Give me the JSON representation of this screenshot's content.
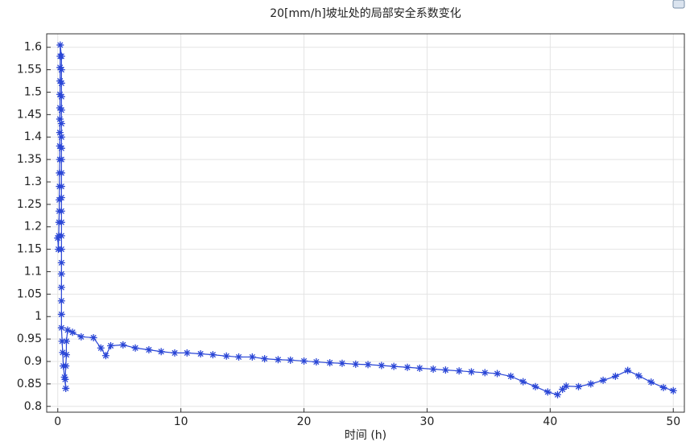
{
  "chart_data": {
    "type": "line",
    "title": "20[mm/h]坡址处的局部安全系数变化",
    "x_label": "时间 (h)",
    "xlim": [
      -0.9,
      50.9
    ],
    "xticks": [
      0,
      10,
      20,
      30,
      40,
      50
    ],
    "ylim": [
      0.787,
      1.63
    ],
    "yticks": [
      0.8,
      0.85,
      0.9,
      0.95,
      1,
      1.05,
      1.1,
      1.15,
      1.2,
      1.25,
      1.3,
      1.35,
      1.4,
      1.45,
      1.5,
      1.55,
      1.6
    ],
    "grid": true,
    "series": [
      {
        "color": "#2a46d6",
        "x": [
          0,
          0.05,
          0.08,
          0.1,
          0.12,
          0.12,
          0.14,
          0.14,
          0.16,
          0.16,
          0.17,
          0.17,
          0.18,
          0.18,
          0.19,
          0.19,
          0.2,
          0.2,
          0.3,
          0.3,
          0.3,
          0.3,
          0.3,
          0.3,
          0.3,
          0.3,
          0.3,
          0.3,
          0.3,
          0.3,
          0.3,
          0.3,
          0.3,
          0.3,
          0.3,
          0.3,
          0.3,
          0.3,
          0.3,
          0.3,
          0.35,
          0.4,
          0.45,
          0.55,
          0.65,
          0.6,
          0.65,
          0.7,
          0.7,
          0.8,
          1.2,
          1.9,
          2.9,
          3.5,
          3.9,
          4.3,
          5.3,
          6.3,
          7.4,
          8.4,
          9.5,
          10.5,
          11.6,
          12.6,
          13.7,
          14.7,
          15.8,
          16.8,
          17.9,
          18.9,
          20,
          21,
          22.1,
          23.1,
          24.2,
          25.2,
          26.3,
          27.3,
          28.4,
          29.4,
          30.5,
          31.5,
          32.6,
          33.6,
          34.7,
          35.7,
          36.8,
          37.8,
          38.8,
          39.8,
          40.6,
          41,
          41.3,
          42.3,
          43.3,
          44.3,
          45.3,
          46.3,
          47.2,
          48.2,
          49.2,
          50
        ],
        "values": [
          1.175,
          1.15,
          1.18,
          1.21,
          1.235,
          1.26,
          1.29,
          1.32,
          1.35,
          1.38,
          1.41,
          1.44,
          1.465,
          1.495,
          1.525,
          1.555,
          1.58,
          1.605,
          1.58,
          1.55,
          1.52,
          1.49,
          1.46,
          1.43,
          1.4,
          1.375,
          1.35,
          1.32,
          1.29,
          1.265,
          1.235,
          1.21,
          1.18,
          1.15,
          1.12,
          1.095,
          1.065,
          1.035,
          1.005,
          0.975,
          0.945,
          0.92,
          0.89,
          0.865,
          0.84,
          0.86,
          0.89,
          0.915,
          0.945,
          0.97,
          0.965,
          0.955,
          0.953,
          0.93,
          0.913,
          0.935,
          0.937,
          0.93,
          0.926,
          0.922,
          0.919,
          0.919,
          0.917,
          0.915,
          0.912,
          0.91,
          0.91,
          0.906,
          0.904,
          0.903,
          0.901,
          0.899,
          0.897,
          0.896,
          0.894,
          0.893,
          0.891,
          0.889,
          0.887,
          0.885,
          0.883,
          0.881,
          0.879,
          0.877,
          0.875,
          0.873,
          0.867,
          0.855,
          0.844,
          0.832,
          0.826,
          0.838,
          0.845,
          0.844,
          0.85,
          0.858,
          0.867,
          0.88,
          0.868,
          0.854,
          0.842,
          0.835
        ]
      }
    ]
  }
}
